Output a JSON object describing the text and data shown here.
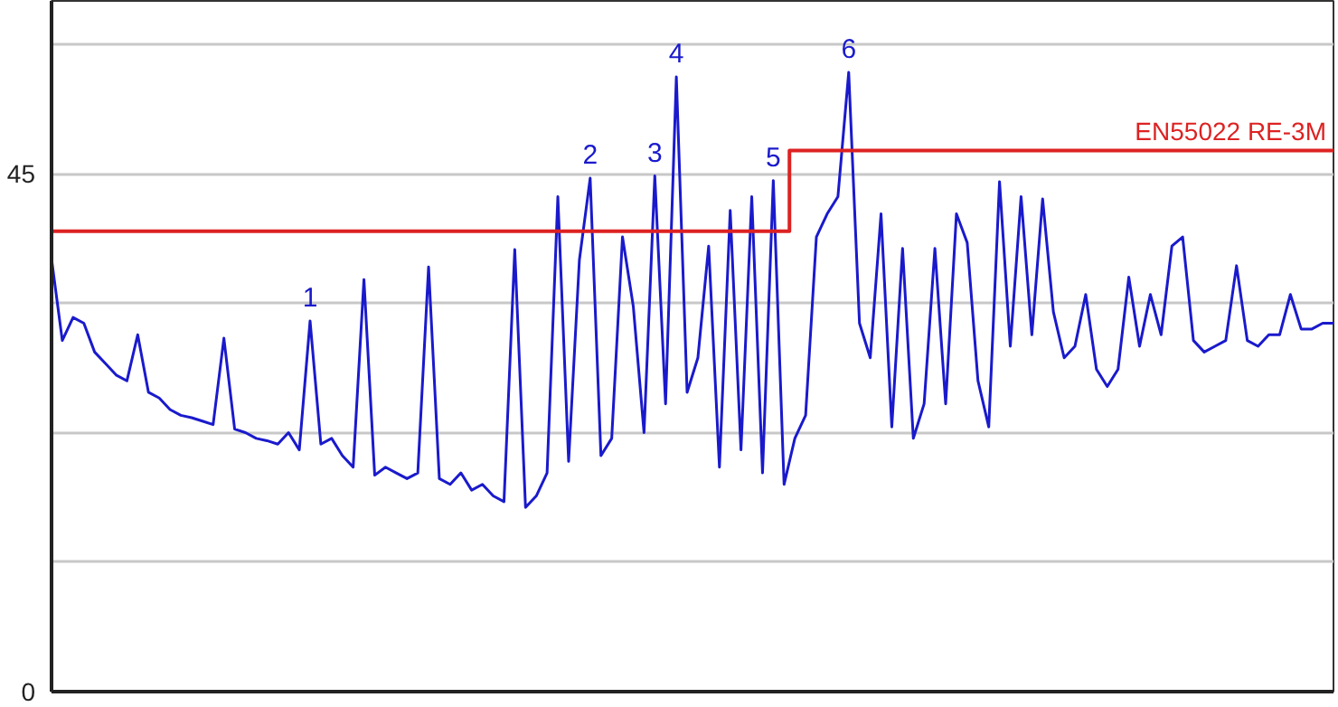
{
  "chart_data": {
    "type": "line",
    "categories": [
      null,
      null,
      null,
      null,
      null,
      null,
      null,
      null,
      null,
      null,
      null,
      null,
      null,
      null,
      null,
      null,
      null,
      null,
      null,
      null,
      null,
      null,
      null,
      null,
      null,
      null,
      null,
      null,
      null,
      null,
      null,
      null,
      null,
      null,
      null,
      null,
      null,
      null,
      null,
      null,
      null,
      null,
      null,
      null,
      null,
      null,
      null,
      null,
      null,
      null,
      null,
      null,
      null,
      null,
      null,
      null,
      null,
      null,
      null,
      null,
      null,
      null,
      null,
      null,
      null,
      null,
      null,
      null,
      null,
      null,
      null,
      null,
      null,
      null,
      null,
      null,
      null,
      null,
      null,
      null,
      null,
      null,
      null,
      null,
      null,
      null,
      null,
      null,
      null,
      null,
      null,
      null,
      null,
      null,
      null,
      null,
      null,
      null,
      null,
      null,
      null,
      null,
      null,
      null,
      null,
      null,
      null,
      null,
      null,
      null,
      null,
      null,
      null,
      null,
      null,
      null,
      null,
      null,
      null,
      null
    ],
    "series": [
      {
        "color": "#1a1acc",
        "values": [
          37.6,
          30.5,
          32.5,
          32.0,
          29.5,
          28.5,
          27.5,
          27.0,
          31.0,
          26.0,
          25.5,
          24.5,
          24.0,
          23.8,
          23.5,
          23.2,
          30.7,
          22.8,
          22.5,
          22.0,
          21.8,
          21.5,
          22.5,
          21.0,
          32.2,
          21.5,
          22.0,
          20.5,
          19.5,
          35.8,
          18.8,
          19.5,
          19.0,
          18.5,
          19.0,
          36.9,
          18.5,
          18.0,
          19.0,
          17.5,
          18.0,
          17.0,
          16.5,
          38.4,
          16.0,
          17.0,
          19.0,
          43.0,
          20.0,
          37.5,
          44.6,
          20.5,
          22.0,
          39.5,
          33.5,
          22.5,
          44.8,
          25.0,
          53.4,
          26.0,
          29.0,
          38.7,
          19.5,
          41.8,
          21.0,
          43.0,
          19.0,
          44.4,
          18.0,
          22.0,
          24.0,
          39.5,
          41.5,
          43.0,
          53.8,
          32.0,
          29.0,
          41.5,
          23.0,
          38.5,
          22.0,
          25.0,
          38.5,
          25.0,
          41.5,
          39.0,
          27.0,
          23.0,
          44.3,
          30.0,
          43.0,
          31.0,
          42.8,
          33.0,
          29.0,
          30.0,
          34.5,
          28.0,
          26.5,
          28.0,
          36.0,
          30.0,
          34.5,
          31.0,
          38.7,
          39.5,
          30.5,
          29.5,
          30.0,
          30.5,
          37.0,
          30.5,
          30.0,
          31.0,
          31.0,
          34.5,
          31.5,
          31.5,
          32.0,
          32.0
        ]
      },
      {
        "type": "step",
        "name": "EN55022 RE-3M",
        "color": "#dd2222",
        "values": [
          40,
          40,
          40,
          40,
          40,
          40,
          40,
          40,
          40,
          40,
          40,
          40,
          40,
          40,
          40,
          40,
          40,
          40,
          40,
          40,
          40,
          40,
          40,
          40,
          40,
          40,
          40,
          40,
          40,
          40,
          40,
          40,
          40,
          40,
          40,
          40,
          40,
          40,
          40,
          40,
          40,
          40,
          40,
          40,
          40,
          40,
          40,
          40,
          40,
          40,
          40,
          40,
          40,
          40,
          40,
          40,
          40,
          40,
          40,
          40,
          40,
          40,
          40,
          40,
          40,
          40,
          40,
          40,
          40,
          47,
          47,
          47,
          47,
          47,
          47,
          47,
          47,
          47,
          47,
          47,
          47,
          47,
          47,
          47,
          47,
          47,
          47,
          47,
          47,
          47,
          47,
          47,
          47,
          47,
          47,
          47,
          47,
          47,
          47,
          47,
          47,
          47,
          47,
          47,
          47,
          47,
          47,
          47,
          47,
          47,
          47,
          47,
          47,
          47,
          47,
          47,
          47,
          47,
          47,
          47
        ]
      }
    ],
    "annotations": [
      {
        "text": "1",
        "y": 32.2
      },
      {
        "text": "2",
        "y": 44.6
      },
      {
        "text": "3",
        "y": 44.8
      },
      {
        "text": "4",
        "y": 53.4
      },
      {
        "text": "5",
        "y": 44.4
      },
      {
        "text": "6",
        "y": 53.8
      }
    ],
    "ylim": [
      0,
      60
    ],
    "yticks": [
      0,
      {
        "value": 11.25,
        "label": null
      },
      {
        "value": 22.5,
        "label": null
      },
      {
        "value": 33.75,
        "label": null
      },
      45,
      {
        "value": 56.25,
        "label": null
      }
    ],
    "grid": "y",
    "legend": false,
    "tick_labels": "y"
  }
}
